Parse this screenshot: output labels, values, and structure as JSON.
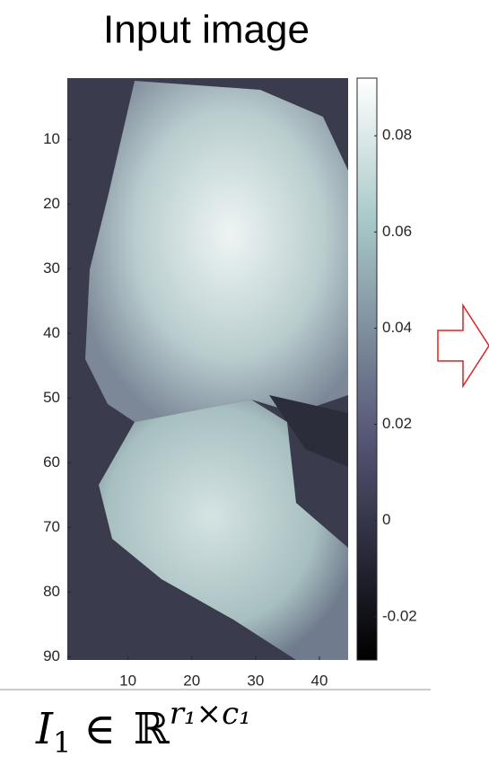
{
  "title": "Input image",
  "chart_data": {
    "type": "image",
    "xlim": [
      0.5,
      44.5
    ],
    "xticks": [
      10,
      20,
      30,
      40
    ],
    "ylim": [
      0.5,
      90.5
    ],
    "yticks": [
      10,
      20,
      30,
      40,
      50,
      60,
      70,
      80,
      90
    ],
    "colorbar": {
      "lim": [
        -0.029,
        0.092
      ],
      "ticks": [
        -0.02,
        {
          "value": 0,
          "label": "0"
        },
        0.02,
        0.04,
        0.06,
        0.08
      ]
    }
  },
  "caption": {
    "base": "I",
    "sub": "1",
    "rel": "∈",
    "set": "ℝ",
    "sup": "r₁×c₁"
  }
}
